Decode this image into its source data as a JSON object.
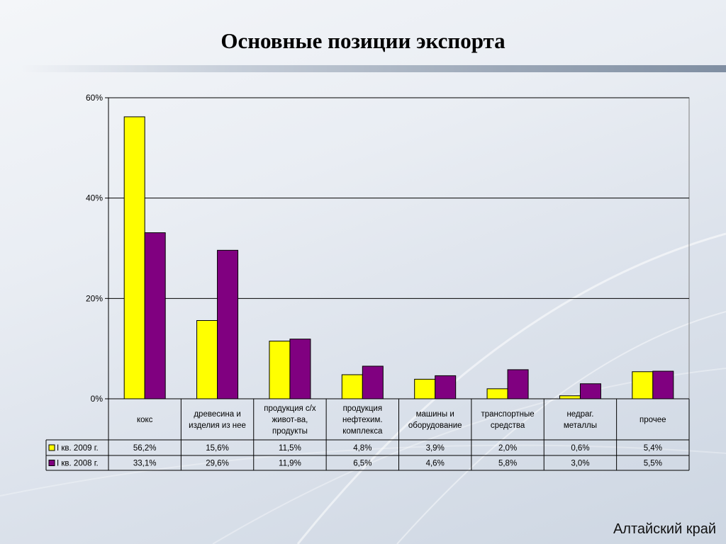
{
  "slide": {
    "title": "Основные позиции экспорта",
    "footer": "Алтайский край"
  },
  "chart_data": {
    "type": "bar",
    "categories": [
      [
        "кокс"
      ],
      [
        "древесина и",
        "изделия из нее"
      ],
      [
        "продукция с/х",
        "живот-ва,",
        "продукты"
      ],
      [
        "продукция",
        "нефтехим.",
        "комплекса"
      ],
      [
        "машины и",
        "оборудование"
      ],
      [
        "транспортные",
        "средства"
      ],
      [
        "недраг.",
        "металлы"
      ],
      [
        "прочее"
      ]
    ],
    "series": [
      {
        "name": "I кв. 2009 г.",
        "color": "#ffff00",
        "values": [
          56.2,
          15.6,
          11.5,
          4.8,
          3.9,
          2.0,
          0.6,
          5.4
        ],
        "labels": [
          "56,2%",
          "15,6%",
          "11,5%",
          "4,8%",
          "3,9%",
          "2,0%",
          "0,6%",
          "5,4%"
        ]
      },
      {
        "name": "I кв. 2008 г.",
        "color": "#800080",
        "values": [
          33.1,
          29.6,
          11.9,
          6.5,
          4.6,
          5.8,
          3.0,
          5.5
        ],
        "labels": [
          "33,1%",
          "29,6%",
          "11,9%",
          "6,5%",
          "4,6%",
          "5,8%",
          "3,0%",
          "5,5%"
        ]
      }
    ],
    "ylim": [
      0,
      60
    ],
    "yticks": [
      0,
      20,
      40,
      60
    ],
    "ytick_labels": [
      "0%",
      "20%",
      "40%",
      "60%"
    ],
    "grid": true,
    "legend": "data-table"
  }
}
